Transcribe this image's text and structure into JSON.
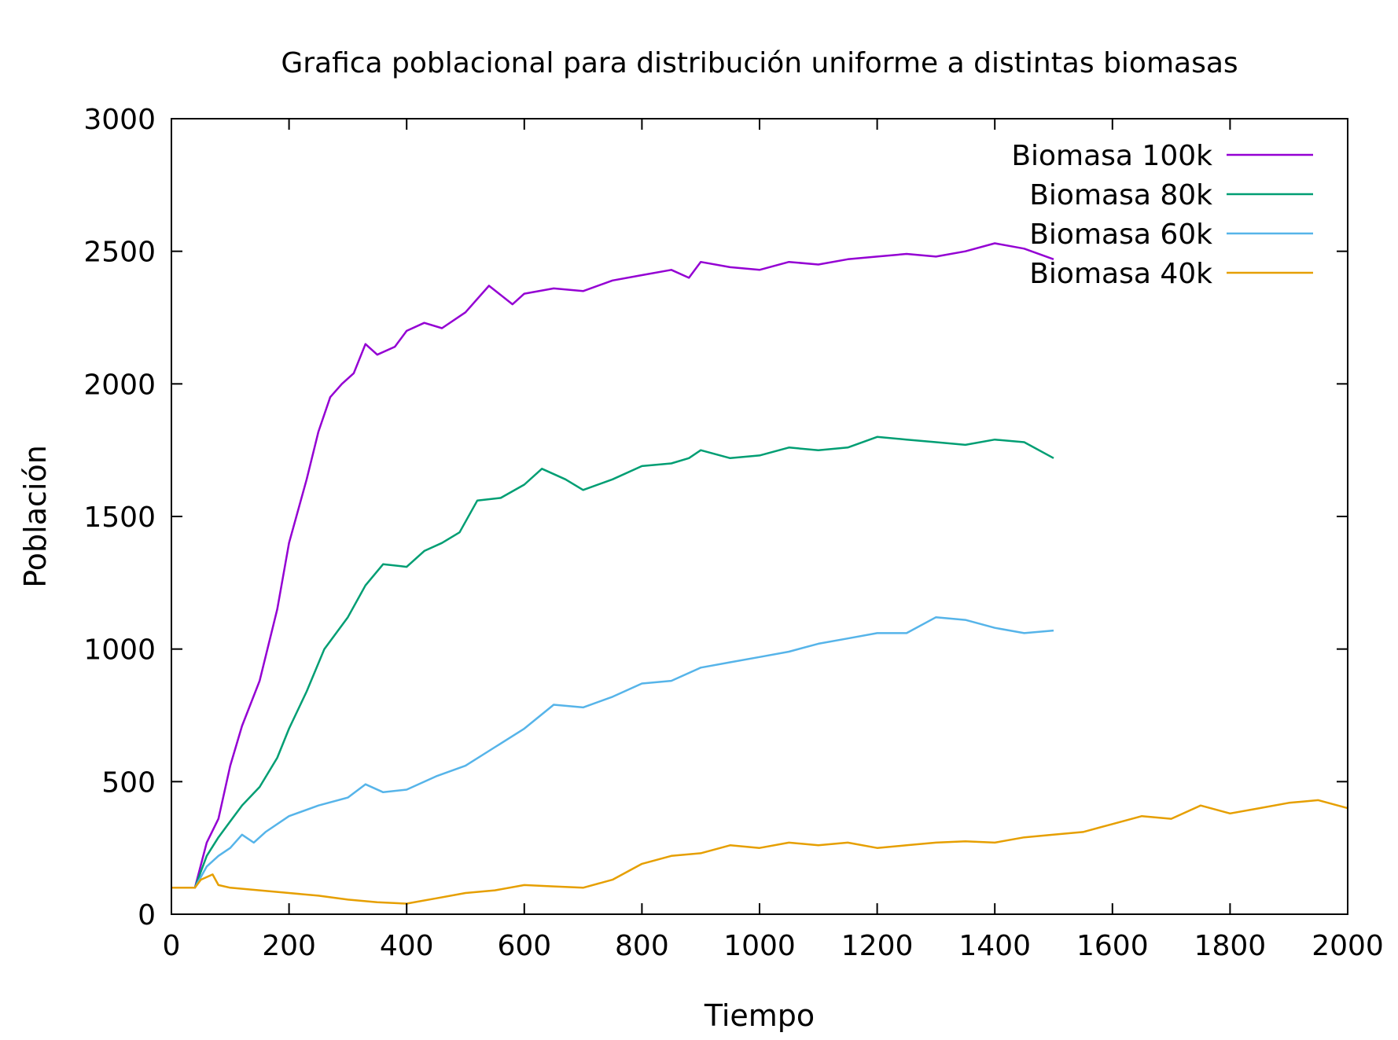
{
  "chart_data": {
    "type": "line",
    "title": "Grafica poblacional para distribución uniforme a distintas biomasas",
    "xlabel": "Tiempo",
    "ylabel": "Población",
    "xlim": [
      0,
      2000
    ],
    "ylim": [
      0,
      3000
    ],
    "xticks": [
      0,
      200,
      400,
      600,
      800,
      1000,
      1200,
      1400,
      1600,
      1800,
      2000
    ],
    "yticks": [
      0,
      500,
      1000,
      1500,
      2000,
      2500,
      3000
    ],
    "xtick_labels": [
      "0",
      "200",
      "400",
      "600",
      "800",
      "1000",
      "1200",
      "1400",
      "1600",
      "1800",
      "2000"
    ],
    "ytick_labels": [
      "0",
      "500",
      "1000",
      "1500",
      "2000",
      "2500",
      "3000"
    ],
    "grid": false,
    "legend_position": "top-right",
    "series": [
      {
        "name": "Biomasa 100k",
        "color": "#9400d3",
        "x": [
          0,
          40,
          60,
          80,
          100,
          120,
          150,
          180,
          200,
          230,
          250,
          270,
          290,
          310,
          330,
          350,
          380,
          400,
          430,
          460,
          500,
          540,
          580,
          600,
          650,
          700,
          750,
          800,
          850,
          880,
          900,
          950,
          1000,
          1050,
          1100,
          1150,
          1200,
          1250,
          1300,
          1350,
          1400,
          1450,
          1500
        ],
        "y": [
          100,
          100,
          270,
          360,
          560,
          710,
          880,
          1150,
          1400,
          1640,
          1820,
          1950,
          2000,
          2040,
          2150,
          2110,
          2140,
          2200,
          2230,
          2210,
          2270,
          2370,
          2300,
          2340,
          2360,
          2350,
          2390,
          2410,
          2430,
          2400,
          2460,
          2440,
          2430,
          2460,
          2450,
          2470,
          2480,
          2490,
          2480,
          2500,
          2530,
          2510,
          2470
        ]
      },
      {
        "name": "Biomasa 80k",
        "color": "#009e73",
        "x": [
          0,
          40,
          60,
          80,
          100,
          120,
          150,
          180,
          200,
          230,
          260,
          300,
          330,
          360,
          400,
          430,
          460,
          490,
          520,
          560,
          600,
          630,
          670,
          700,
          750,
          800,
          850,
          880,
          900,
          950,
          1000,
          1050,
          1100,
          1150,
          1200,
          1250,
          1300,
          1350,
          1400,
          1450,
          1500
        ],
        "y": [
          100,
          100,
          220,
          290,
          350,
          410,
          480,
          590,
          700,
          840,
          1000,
          1120,
          1240,
          1320,
          1310,
          1370,
          1400,
          1440,
          1560,
          1570,
          1620,
          1680,
          1640,
          1600,
          1640,
          1690,
          1700,
          1720,
          1750,
          1720,
          1730,
          1760,
          1750,
          1760,
          1800,
          1790,
          1780,
          1770,
          1790,
          1780,
          1720
        ]
      },
      {
        "name": "Biomasa 60k",
        "color": "#56b4e9",
        "x": [
          0,
          40,
          60,
          80,
          100,
          120,
          140,
          160,
          200,
          250,
          300,
          330,
          360,
          400,
          450,
          500,
          550,
          600,
          650,
          700,
          750,
          800,
          850,
          900,
          950,
          1000,
          1050,
          1100,
          1150,
          1200,
          1250,
          1300,
          1350,
          1400,
          1450,
          1500
        ],
        "y": [
          100,
          100,
          180,
          220,
          250,
          300,
          270,
          310,
          370,
          410,
          440,
          490,
          460,
          470,
          520,
          560,
          630,
          700,
          790,
          780,
          820,
          870,
          880,
          930,
          950,
          970,
          990,
          1020,
          1040,
          1060,
          1060,
          1120,
          1110,
          1080,
          1060,
          1070
        ]
      },
      {
        "name": "Biomasa 40k",
        "color": "#e69f00",
        "x": [
          0,
          40,
          50,
          70,
          80,
          100,
          150,
          200,
          250,
          300,
          350,
          400,
          450,
          500,
          550,
          600,
          650,
          700,
          750,
          800,
          850,
          900,
          950,
          1000,
          1050,
          1100,
          1150,
          1200,
          1250,
          1300,
          1350,
          1400,
          1450,
          1500,
          1550,
          1600,
          1650,
          1700,
          1750,
          1800,
          1850,
          1900,
          1950,
          2000
        ],
        "y": [
          100,
          100,
          130,
          150,
          110,
          100,
          90,
          80,
          70,
          55,
          45,
          40,
          60,
          80,
          90,
          110,
          105,
          100,
          130,
          190,
          220,
          230,
          260,
          250,
          270,
          260,
          270,
          250,
          260,
          270,
          275,
          270,
          290,
          300,
          310,
          340,
          370,
          360,
          410,
          380,
          400,
          420,
          430,
          400
        ]
      }
    ]
  }
}
